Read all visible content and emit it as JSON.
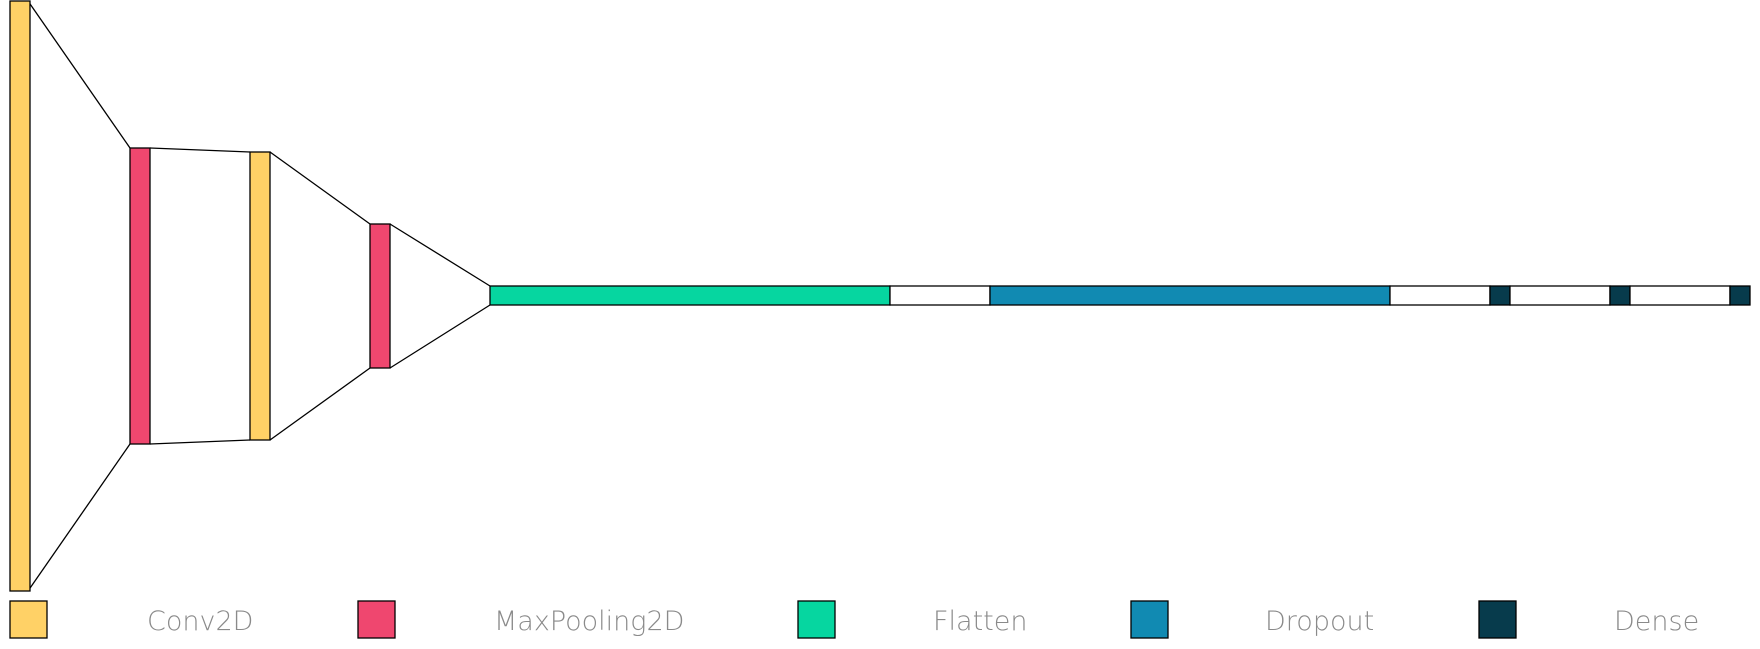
{
  "colors": {
    "conv2d": "#FFD166",
    "maxpooling2d": "#EF476F",
    "flatten": "#06D6A0",
    "dropout": "#118AB2",
    "dense": "#073B4C",
    "spacer": "#FFFFFF",
    "stroke": "#000000"
  },
  "legend": [
    {
      "label": "Conv2D",
      "color_key": "conv2d"
    },
    {
      "label": "MaxPooling2D",
      "color_key": "maxpooling2d"
    },
    {
      "label": "Flatten",
      "color_key": "flatten"
    },
    {
      "label": "Dropout",
      "color_key": "dropout"
    },
    {
      "label": "Dense",
      "color_key": "dense"
    }
  ],
  "layers": [
    {
      "type": "Conv2D"
    },
    {
      "type": "MaxPooling2D"
    },
    {
      "type": "Conv2D"
    },
    {
      "type": "MaxPooling2D"
    },
    {
      "type": "Flatten"
    },
    {
      "type": "Dropout"
    },
    {
      "type": "Dense"
    },
    {
      "type": "Dense"
    },
    {
      "type": "Dense"
    }
  ]
}
